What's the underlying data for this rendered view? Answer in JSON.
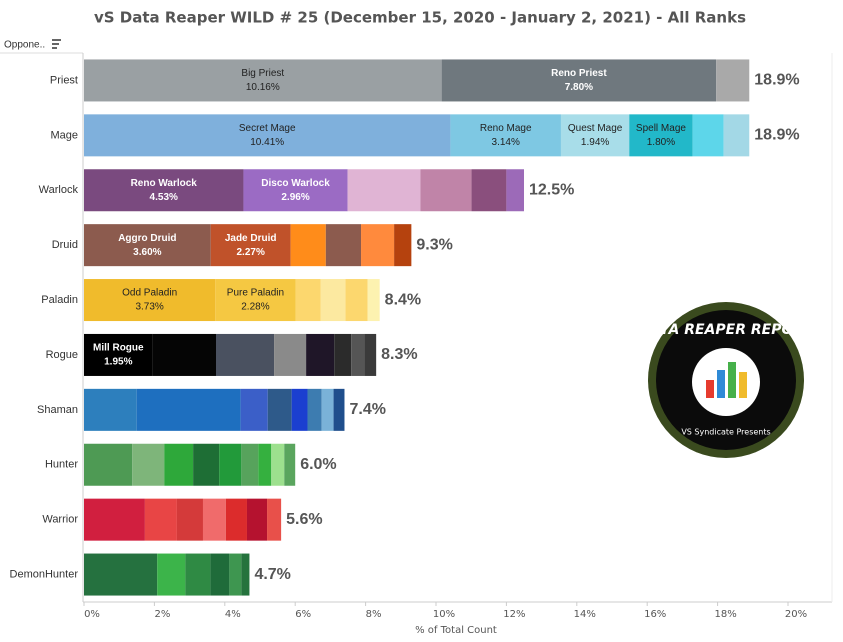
{
  "chart_data": {
    "type": "stacked-bar-horizontal",
    "title": "vS Data Reaper WILD # 25 (December 15, 2020 - January 2, 2021) - All Ranks",
    "column_header": "Oppone..",
    "x_axis_label": "% of Total Count",
    "xlim": [
      0,
      21.25
    ],
    "xticks": [
      {
        "value": 0,
        "label": "0%"
      },
      {
        "value": 2,
        "label": "2%"
      },
      {
        "value": 4,
        "label": "4%"
      },
      {
        "value": 6,
        "label": "6%"
      },
      {
        "value": 8,
        "label": "8%"
      },
      {
        "value": 10,
        "label": "10%"
      },
      {
        "value": 12,
        "label": "12%"
      },
      {
        "value": 14,
        "label": "14%"
      },
      {
        "value": 16,
        "label": "16%"
      },
      {
        "value": 18,
        "label": "18%"
      },
      {
        "value": 20,
        "label": "20%"
      }
    ],
    "rows": [
      {
        "name": "Priest",
        "total": 18.9,
        "total_label": "18.9%",
        "segments": [
          {
            "name": "Big Priest",
            "value": 10.16,
            "value_label": "10.16%",
            "color": "#9aa0a3"
          },
          {
            "name": "Reno Priest",
            "value": 7.8,
            "value_label": "7.80%",
            "color": "#6f787e"
          },
          {
            "value": 0.94,
            "color": "#a9a9a9"
          }
        ]
      },
      {
        "name": "Mage",
        "total": 18.9,
        "total_label": "18.9%",
        "segments": [
          {
            "name": "Secret Mage",
            "value": 10.41,
            "value_label": "10.41%",
            "color": "#7fb0dc"
          },
          {
            "name": "Reno Mage",
            "value": 3.14,
            "value_label": "3.14%",
            "color": "#7ec8e3"
          },
          {
            "name": "Quest Mage",
            "value": 1.94,
            "value_label": "1.94%",
            "color": "#a8dde9"
          },
          {
            "name": "Spell Mage",
            "value": 1.8,
            "value_label": "1.80%",
            "color": "#22b8c9"
          },
          {
            "value": 0.88,
            "color": "#5dd6ea"
          },
          {
            "value": 0.73,
            "color": "#a3d8e6"
          }
        ]
      },
      {
        "name": "Warlock",
        "total": 12.5,
        "total_label": "12.5%",
        "segments": [
          {
            "name": "Reno Warlock",
            "value": 4.53,
            "value_label": "4.53%",
            "color": "#7a4a7f"
          },
          {
            "name": "Disco Warlock",
            "value": 2.96,
            "value_label": "2.96%",
            "color": "#9b6bc4"
          },
          {
            "value": 2.07,
            "color": "#e0b4d4"
          },
          {
            "value": 1.45,
            "color": "#c084a8"
          },
          {
            "value": 0.99,
            "color": "#8a4f7d"
          },
          {
            "value": 0.5,
            "color": "#9c6ab8"
          }
        ]
      },
      {
        "name": "Druid",
        "total": 9.3,
        "total_label": "9.3%",
        "segments": [
          {
            "name": "Aggro Druid",
            "value": 3.6,
            "value_label": "3.60%",
            "color": "#8c5b4e"
          },
          {
            "name": "Jade Druid",
            "value": 2.27,
            "value_label": "2.27%",
            "color": "#c0522a"
          },
          {
            "value": 1.0,
            "color": "#ff8c1a"
          },
          {
            "value": 1.0,
            "color": "#8c5b4e"
          },
          {
            "value": 0.94,
            "color": "#ff8a3d"
          },
          {
            "value": 0.49,
            "color": "#b5420e"
          }
        ]
      },
      {
        "name": "Paladin",
        "total": 8.4,
        "total_label": "8.4%",
        "segments": [
          {
            "name": "Odd Paladin",
            "value": 3.73,
            "value_label": "3.73%",
            "color": "#f0bb2c"
          },
          {
            "name": "Pure Paladin",
            "value": 2.28,
            "value_label": "2.28%",
            "color": "#f5c842"
          },
          {
            "value": 0.71,
            "color": "#fcd76e"
          },
          {
            "value": 0.71,
            "color": "#fce9a0"
          },
          {
            "value": 0.63,
            "color": "#fcd76e"
          },
          {
            "value": 0.34,
            "color": "#fdf2b0"
          }
        ]
      },
      {
        "name": "Rogue",
        "total": 8.3,
        "total_label": "8.3%",
        "segments": [
          {
            "name": "Mill Rogue",
            "value": 1.95,
            "value_label": "1.95%",
            "color": "#000000"
          },
          {
            "value": 1.8,
            "color": "#050505"
          },
          {
            "value": 1.65,
            "color": "#4a5160"
          },
          {
            "value": 0.91,
            "color": "#8a8a8a"
          },
          {
            "value": 0.8,
            "color": "#1f1628"
          },
          {
            "value": 0.48,
            "color": "#2b2b2b"
          },
          {
            "value": 0.37,
            "color": "#555555"
          },
          {
            "value": 0.34,
            "color": "#3a3a3a"
          }
        ]
      },
      {
        "name": "Shaman",
        "total": 7.4,
        "total_label": "7.4%",
        "segments": [
          {
            "value": 1.5,
            "color": "#2d7fbd"
          },
          {
            "value": 2.95,
            "color": "#1e6fbf"
          },
          {
            "value": 0.77,
            "color": "#3b5fc8"
          },
          {
            "value": 0.68,
            "color": "#2e5a8a"
          },
          {
            "value": 0.45,
            "color": "#1b3fd0"
          },
          {
            "value": 0.4,
            "color": "#3d7cb0"
          },
          {
            "value": 0.34,
            "color": "#7ab2d8"
          },
          {
            "value": 0.31,
            "color": "#1f4e8c"
          }
        ]
      },
      {
        "name": "Hunter",
        "total": 6.0,
        "total_label": "6.0%",
        "segments": [
          {
            "value": 1.37,
            "color": "#4e9a54"
          },
          {
            "value": 0.91,
            "color": "#7eb57a"
          },
          {
            "value": 0.82,
            "color": "#2ea83a"
          },
          {
            "value": 0.74,
            "color": "#1e6e35"
          },
          {
            "value": 0.63,
            "color": "#229a3a"
          },
          {
            "value": 0.48,
            "color": "#57a35c"
          },
          {
            "value": 0.37,
            "color": "#35b03f"
          },
          {
            "value": 0.37,
            "color": "#9de08e"
          },
          {
            "value": 0.31,
            "color": "#5aa55e"
          }
        ]
      },
      {
        "name": "Warrior",
        "total": 5.6,
        "total_label": "5.6%",
        "segments": [
          {
            "value": 1.73,
            "color": "#d11f3f"
          },
          {
            "value": 0.91,
            "color": "#e84545"
          },
          {
            "value": 0.74,
            "color": "#d43a3a"
          },
          {
            "value": 0.65,
            "color": "#f06b6b"
          },
          {
            "value": 0.6,
            "color": "#dc2c2c"
          },
          {
            "value": 0.57,
            "color": "#b5122f"
          },
          {
            "value": 0.4,
            "color": "#e8504a"
          }
        ]
      },
      {
        "name": "DemonHunter",
        "total": 4.7,
        "total_label": "4.7%",
        "segments": [
          {
            "value": 2.08,
            "color": "#25713f"
          },
          {
            "value": 0.8,
            "color": "#3cb44a"
          },
          {
            "value": 0.71,
            "color": "#2f8a44"
          },
          {
            "value": 0.54,
            "color": "#1f6b3a"
          },
          {
            "value": 0.34,
            "color": "#3e9650"
          },
          {
            "value": 0.23,
            "color": "#25733d"
          }
        ]
      }
    ]
  },
  "logo": {
    "title": "DATA REAPER REPORT",
    "subtitle": "VS Syndicate Presents"
  }
}
